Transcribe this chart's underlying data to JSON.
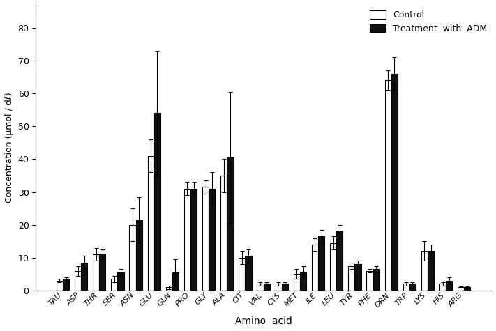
{
  "categories": [
    "TAU",
    "ASP",
    "THR",
    "SER",
    "ASN",
    "GLU",
    "GLN",
    "PRO",
    "GLY",
    "ALA",
    "CIT",
    "VAL",
    "CYS",
    "MET",
    "ILE",
    "LEU",
    "TYR",
    "PHE",
    "ORN",
    "TRP",
    "LYS",
    "HIS",
    "ARG"
  ],
  "control": [
    3.0,
    6.0,
    11.0,
    3.5,
    20.0,
    41.0,
    1.0,
    31.0,
    31.5,
    35.0,
    10.0,
    2.0,
    2.0,
    5.0,
    14.0,
    14.5,
    7.5,
    6.0,
    64.0,
    2.0,
    12.0,
    2.0,
    1.0
  ],
  "treatment": [
    3.5,
    8.5,
    11.0,
    5.5,
    21.5,
    54.0,
    5.5,
    31.0,
    31.0,
    40.5,
    10.5,
    2.0,
    2.0,
    5.5,
    16.5,
    18.0,
    8.0,
    6.5,
    66.0,
    2.0,
    12.0,
    3.0,
    1.0
  ],
  "control_err": [
    0.5,
    1.5,
    2.0,
    1.0,
    5.0,
    5.0,
    0.5,
    2.0,
    2.0,
    5.0,
    2.0,
    0.5,
    0.5,
    1.5,
    2.0,
    2.0,
    1.0,
    0.5,
    3.0,
    0.5,
    3.0,
    0.5,
    0.2
  ],
  "treatment_err": [
    0.5,
    2.0,
    1.5,
    1.0,
    7.0,
    19.0,
    4.0,
    2.0,
    5.0,
    20.0,
    2.0,
    0.5,
    0.5,
    2.0,
    2.0,
    2.0,
    1.0,
    1.0,
    5.0,
    0.5,
    2.0,
    1.0,
    0.2
  ],
  "ylabel": "Concentration (μmol / dℓ)",
  "xlabel": "Amino  acid",
  "ylim": [
    0,
    87
  ],
  "yticks": [
    0,
    10,
    20,
    30,
    40,
    50,
    60,
    70,
    80
  ],
  "legend_labels": [
    "Control",
    "Treatment  with  ADM"
  ],
  "bar_width": 0.35,
  "control_color": "#ffffff",
  "treatment_color": "#111111",
  "edge_color": "#000000",
  "background_color": "#ffffff"
}
